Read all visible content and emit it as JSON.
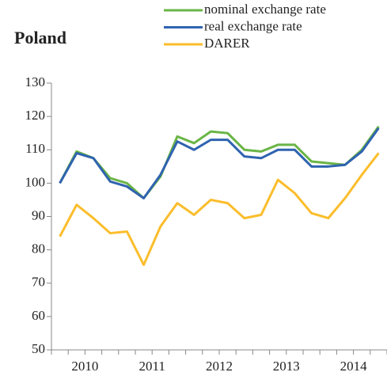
{
  "chart_data": {
    "type": "line",
    "title": "Poland",
    "categories": [
      "2010",
      null,
      null,
      null,
      "2011",
      null,
      null,
      null,
      "2012",
      null,
      null,
      null,
      "2013",
      null,
      null,
      null,
      "2014",
      null,
      null,
      null
    ],
    "series": [
      {
        "name": "nominal exchange rate",
        "color": "#6ab547",
        "values": [
          100,
          109.5,
          107.5,
          101.5,
          100,
          95.5,
          102,
          114,
          112,
          115.5,
          115,
          110,
          109.5,
          111.5,
          111.5,
          106.5,
          106,
          105.5,
          110,
          117
        ]
      },
      {
        "name": "real exchange rate",
        "color": "#2f63b0",
        "values": [
          100,
          109,
          107.5,
          100.5,
          99,
          95.5,
          102.5,
          112.5,
          110,
          113,
          113,
          108,
          107.5,
          110,
          110,
          105,
          105,
          105.5,
          109.5,
          116.5
        ]
      },
      {
        "name": "DARER",
        "color": "#fbbd2b",
        "values": [
          84,
          93.5,
          89.5,
          85,
          85.5,
          75.5,
          87,
          94,
          90.5,
          95,
          94,
          89.5,
          90.5,
          101,
          97,
          91,
          89.5,
          95.5,
          102.5,
          109
        ]
      }
    ],
    "ylim": [
      50,
      130
    ],
    "yticks": [
      50,
      60,
      70,
      80,
      90,
      100,
      110,
      120,
      130
    ],
    "grid": false
  }
}
